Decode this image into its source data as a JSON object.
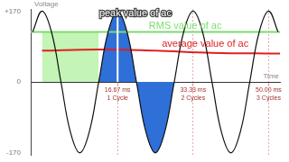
{
  "chart_data": {
    "type": "line",
    "x_label": "Time",
    "y_label": "Voltage",
    "xlim": [
      -2.5,
      52.5
    ],
    "ylim": [
      -175,
      175
    ],
    "xticks": [
      {
        "value": 16.67,
        "label": [
          "16.67 ms",
          "1 Cycle"
        ]
      },
      {
        "value": 33.33,
        "label": [
          "33.33 ms",
          "2 Cycles"
        ]
      },
      {
        "value": 50,
        "label": [
          "50.00 ms",
          "3 Cycles"
        ]
      }
    ],
    "yticks": [
      {
        "value": 170,
        "label": "+170"
      },
      0,
      -170
    ],
    "grid": "x",
    "series": [
      {
        "type": "line",
        "color": "#111111",
        "line_style": "smooth",
        "x": [
          -2.08,
          0,
          2.08,
          4.17,
          6.25,
          8.33,
          10.42,
          12.5,
          14.58,
          16.67,
          18.75,
          20.83,
          22.92,
          25,
          27.08,
          29.17,
          31.25,
          33.33,
          35.42,
          37.5,
          39.58,
          41.67,
          43.75,
          45.83,
          47.92,
          50,
          52.08
        ],
        "values": [
          120,
          170,
          120,
          0,
          -120,
          -170,
          -120,
          0,
          120,
          170,
          120,
          0,
          -120,
          -170,
          -120,
          0,
          120,
          170,
          120,
          0,
          -120,
          -170,
          -120,
          0,
          120,
          170,
          120
        ]
      },
      {
        "type": "line",
        "name": "peak value of ac",
        "color": "#ffffff",
        "line_style": "solid",
        "x": [
          16.67,
          16.67
        ],
        "values": [
          0,
          170
        ]
      },
      {
        "type": "line",
        "name": "average value of ac",
        "color": "#e02020",
        "line_style": "smooth",
        "x": [
          0,
          12.5,
          25,
          37.5,
          52.5
        ],
        "values": [
          75,
          78,
          75,
          70,
          68
        ]
      },
      {
        "type": "line",
        "name": "RMS value of ac",
        "color": "#7ddc6e",
        "line_style": "solid",
        "x": [
          -2.5,
          52.5
        ],
        "values": [
          120,
          120
        ]
      },
      {
        "type": "area",
        "color": "#2f6fd8",
        "line_style": "smooth",
        "x": [
          12.5,
          14.58,
          16.67,
          18.75,
          20.83,
          22.92,
          25,
          27.08,
          29.17
        ],
        "values": [
          0,
          120,
          170,
          120,
          0,
          -120,
          -170,
          -120,
          0
        ]
      },
      {
        "type": "area",
        "color": "#c4f4b6",
        "line_style": "solid",
        "x": [
          0,
          12.5
        ],
        "values": [
          120,
          120
        ]
      }
    ]
  }
}
